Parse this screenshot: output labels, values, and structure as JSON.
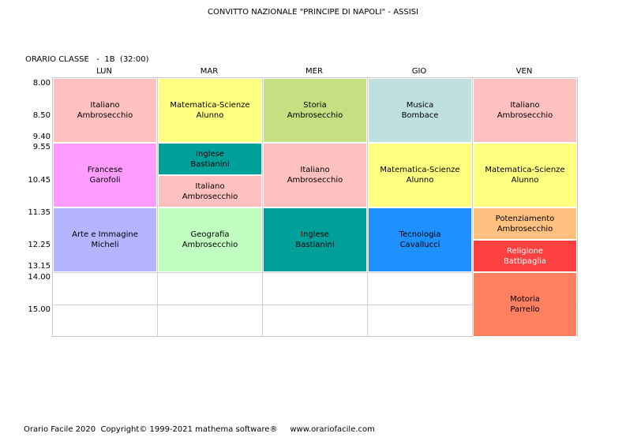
{
  "header": {
    "school": "CONVITTO NAZIONALE \"PRINCIPE DI NAPOLI\" - ASSISI",
    "class_line": "ORARIO CLASSE   -  1B  (32:00)"
  },
  "days": [
    "LUN",
    "MAR",
    "MER",
    "GIO",
    "VEN"
  ],
  "times": [
    "8.00",
    "8.50",
    "9.40",
    "9.55",
    "10.45",
    "11.35",
    "12.25",
    "13.15",
    "14.00",
    "15.00"
  ],
  "lessons": [
    {
      "subject": "Italiano",
      "teacher": "Ambrosecchio",
      "color": "#ffc0c0"
    },
    {
      "subject": "Francese",
      "teacher": "Garofoli",
      "color": "#ff9cff"
    },
    {
      "subject": "Arte e Immagine",
      "teacher": "Micheli",
      "color": "#b4b4ff"
    },
    {
      "subject": "Matematica-Scienze",
      "teacher": "Alunno",
      "color": "#ffff80"
    },
    {
      "subject": "Inglese",
      "teacher": "Bastianini",
      "color": "#00a09a"
    },
    {
      "subject": "Italiano",
      "teacher": "Ambrosecchio",
      "color": "#ffc0c0"
    },
    {
      "subject": "Geografia",
      "teacher": "Ambrosecchio",
      "color": "#c0ffc0"
    },
    {
      "subject": "Storia",
      "teacher": "Ambrosecchio",
      "color": "#c4e080"
    },
    {
      "subject": "Italiano",
      "teacher": "Ambrosecchio",
      "color": "#ffc0c0"
    },
    {
      "subject": "Inglese",
      "teacher": "Bastianini",
      "color": "#00a09a"
    },
    {
      "subject": "Musica",
      "teacher": "Bombace",
      "color": "#c0e0e0"
    },
    {
      "subject": "Matematica-Scienze",
      "teacher": "Alunno",
      "color": "#ffff80"
    },
    {
      "subject": "Tecnologia",
      "teacher": "Cavallucci",
      "color": "#1e90ff"
    },
    {
      "subject": "Italiano",
      "teacher": "Ambrosecchio",
      "color": "#ffc0c0"
    },
    {
      "subject": "Matematica-Scienze",
      "teacher": "Alunno",
      "color": "#ffff80"
    },
    {
      "subject": "Potenziamento",
      "teacher": "Ambrosecchio",
      "color": "#ffc080"
    },
    {
      "subject": "Religione",
      "teacher": "Battipaglia",
      "color": "#ff4040",
      "text_color": "#ffffff"
    },
    {
      "subject": "Motoria",
      "teacher": "Parrello",
      "color": "#ff8060"
    }
  ],
  "footer": "Orario Facile 2020  Copyright© 1999-2021 mathema software®     www.orariofacile.com"
}
